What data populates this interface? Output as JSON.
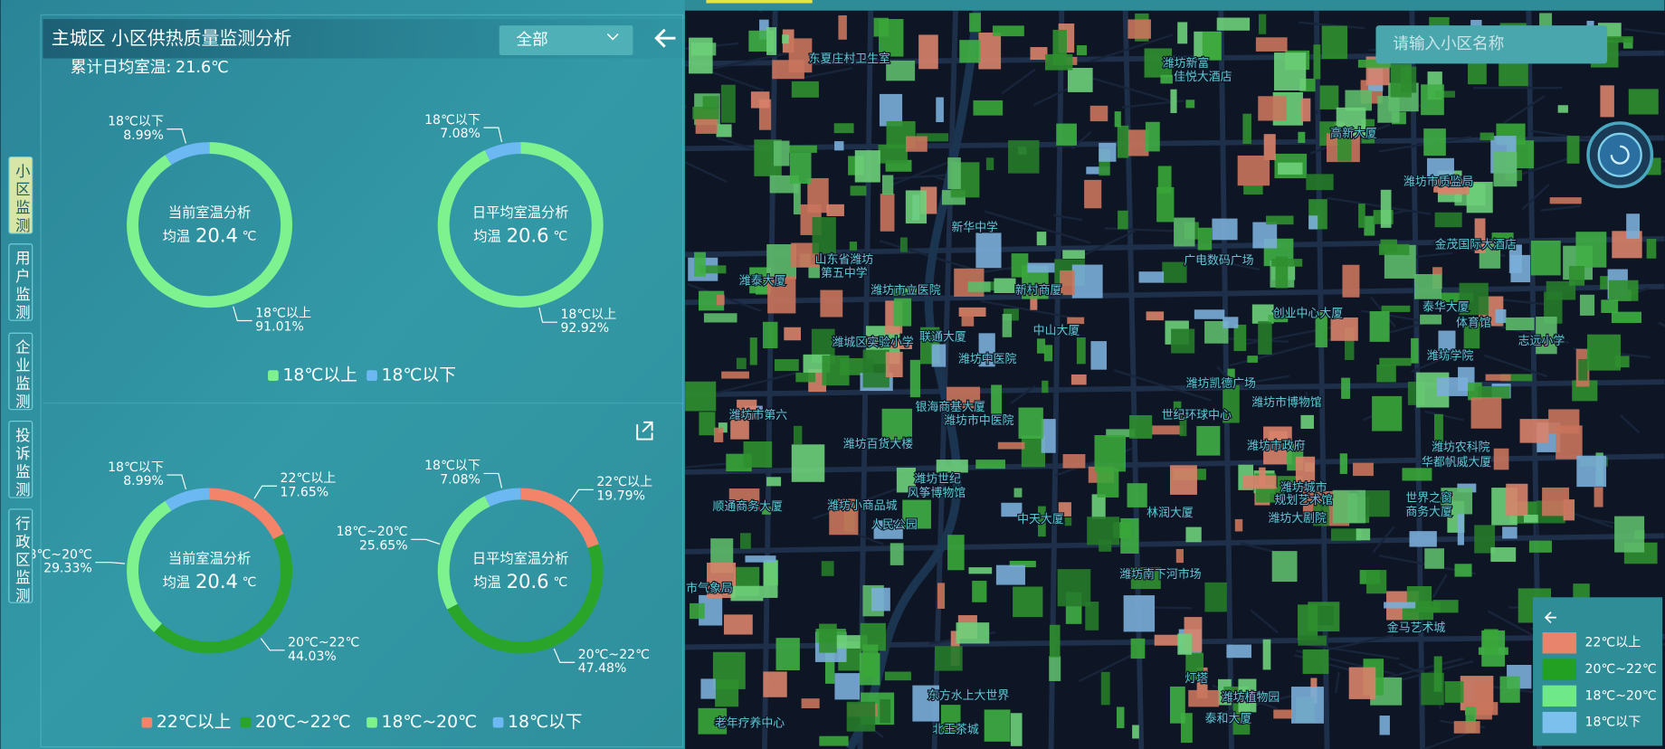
{
  "panel": {
    "title": "主城区 小区供热质量监测分析",
    "dropdown": "全部",
    "summary": {
      "label": "累计日均室温:",
      "value": 21.6,
      "unit": "℃"
    }
  },
  "nav": [
    "小区监测",
    "用户监测",
    "企业监测",
    "投诉监测",
    "行政区监测"
  ],
  "chart_data": [
    {
      "type": "pie",
      "title": "当前室温分析",
      "center_label": "均温",
      "center_value": 20.4,
      "unit": "℃",
      "categories": [
        "18℃以上",
        "18℃以下"
      ],
      "values": [
        91.01,
        8.99
      ],
      "value_labels": [
        "91.01%",
        "8.99%"
      ],
      "colors": [
        "#7df28e",
        "#6cb8f2"
      ]
    },
    {
      "type": "pie",
      "title": "日平均室温分析",
      "center_label": "均温",
      "center_value": 20.6,
      "unit": "℃",
      "categories": [
        "18℃以上",
        "18℃以下"
      ],
      "values": [
        92.92,
        7.08
      ],
      "value_labels": [
        "92.92%",
        "7.08%"
      ],
      "colors": [
        "#7df28e",
        "#6cb8f2"
      ]
    },
    {
      "type": "pie",
      "title": "当前室温分析",
      "center_label": "均温",
      "center_value": 20.4,
      "unit": "℃",
      "categories": [
        "22℃以上",
        "20℃~22℃",
        "18℃~20℃",
        "18℃以下"
      ],
      "values": [
        17.65,
        44.03,
        29.33,
        8.99
      ],
      "value_labels": [
        "17.65%",
        "44.03%",
        "29.33%",
        "8.99%"
      ],
      "colors": [
        "#f3846a",
        "#2aa52a",
        "#7df28e",
        "#6cb8f2"
      ]
    },
    {
      "type": "pie",
      "title": "日平均室温分析",
      "center_label": "均温",
      "center_value": 20.6,
      "unit": "℃",
      "categories": [
        "22℃以上",
        "20℃~22℃",
        "18℃~20℃",
        "18℃以下"
      ],
      "values": [
        19.79,
        47.48,
        25.65,
        7.08
      ],
      "value_labels": [
        "19.79%",
        "47.48%",
        "25.65%",
        "7.08%"
      ],
      "colors": [
        "#f3846a",
        "#2aa52a",
        "#7df28e",
        "#6cb8f2"
      ]
    }
  ],
  "map": {
    "search_placeholder": "请输入小区名称",
    "labels": [
      "东夏庄村卫生室",
      "潍坊新富",
      "佳悦大酒店",
      "高新大厦",
      "潍坊市质监局",
      "新华中学",
      "金茂国际大酒店",
      "山东省潍坊",
      "第五中学",
      "广电数码广场",
      "潍泰大厦",
      "潍坊市立医院",
      "新村商厦",
      "创业中心大厦",
      "泰华大厦",
      "体育馆",
      "潍坊学院",
      "志远小学",
      "潍城区实验小学",
      "联通大厦",
      "中山大厦",
      "潍坊中医院",
      "潍坊凯德广场",
      "银海商基大厦",
      "潍坊市中医院",
      "世纪环球中心",
      "潍坊市博物馆",
      "潍坊市政府",
      "潍坊市第六",
      "潍坊百货大楼",
      "潍坊农科院",
      "华都帆威大厦",
      "潍坊世纪",
      "风筝博物馆",
      "潍坊城市",
      "规划艺术馆",
      "潍坊大剧院",
      "潍坊小商品城",
      "人民公园",
      "顺通商务大厦",
      "中天大厦",
      "林润大厦",
      "世界之窗",
      "商务大厦",
      "潍坊南下河市场",
      "市气象局",
      "金马艺术城",
      "灯塔",
      "东方水上大世界",
      "潍坊植物园",
      "北王茶城",
      "老年疗养中心",
      "泰和大厦"
    ],
    "legend": {
      "categories": [
        "22℃以上",
        "20℃~22℃",
        "18℃~20℃",
        "18℃以下"
      ],
      "colors": [
        "#e8836c",
        "#22a022",
        "#6fe88a",
        "#7cc0ee"
      ]
    }
  }
}
